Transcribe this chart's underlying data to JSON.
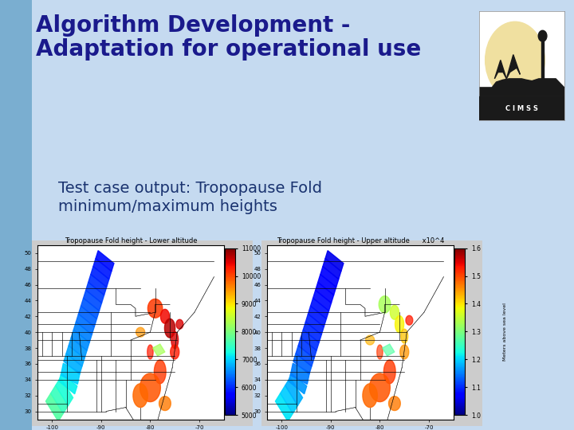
{
  "title_line1": "Algorithm Development -",
  "title_line2": "Adaptation for operational use",
  "subtitle_line1": "Test case output: Tropopause Fold",
  "subtitle_line2": "minimum/maximum heights",
  "title_color": "#1a1a8c",
  "subtitle_color": "#1a3370",
  "title_fontsize": 20,
  "subtitle_fontsize": 14,
  "bg_top_color": "#c5daf0",
  "bg_left_color": "#7aaed0",
  "map1_title": "Tropopause Fold height - Lower altitude",
  "map2_title": "Tropopause Fold height - Upper altitude",
  "map1_ylabel": "Meters above sea level",
  "map2_ylabel": "Meters above sea level",
  "map1_colorbar_ticks": [
    5000,
    6000,
    7000,
    8000,
    9000,
    10000,
    11000
  ],
  "map2_colorbar_ticks": [
    1.0,
    1.1,
    1.2,
    1.3,
    1.4,
    1.5,
    1.6
  ],
  "map2_colorbar_label": "x10^4",
  "map_panel_bg": "#cccccc",
  "map_plot_bg": "#ffffff",
  "xlim": [
    -103,
    -65
  ],
  "ylim": [
    29,
    51
  ],
  "logo_bg": "#f5e8c0",
  "logo_text": "C I M S S"
}
